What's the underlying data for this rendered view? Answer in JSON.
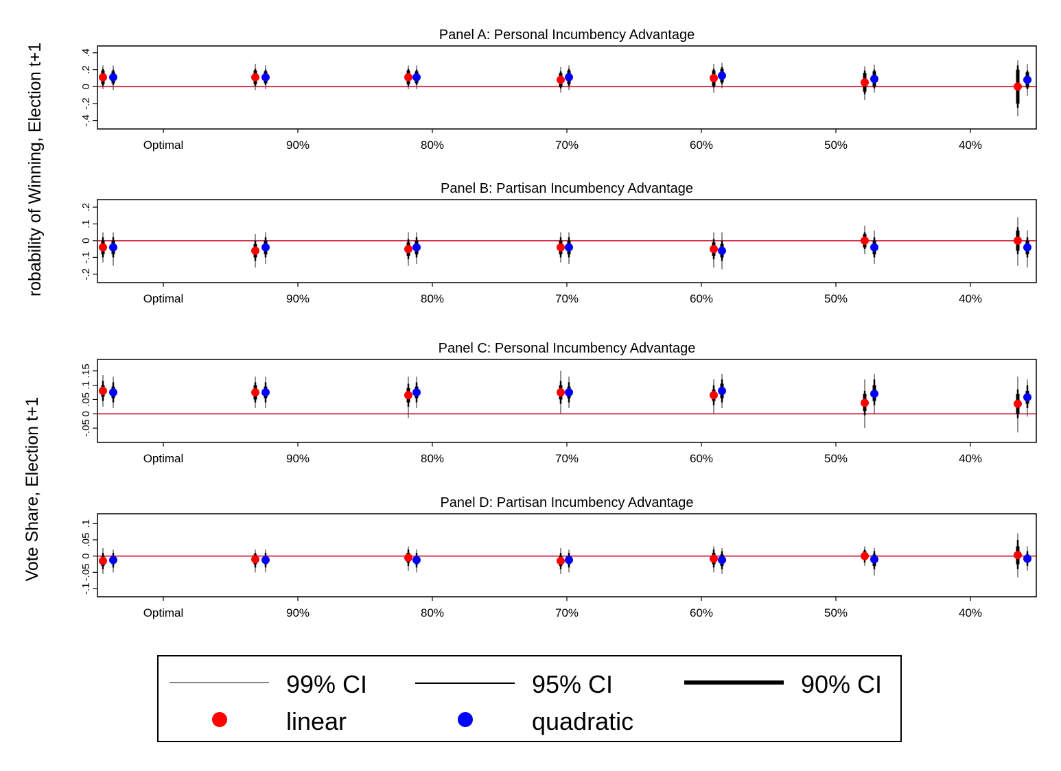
{
  "figure": {
    "ylabel_top": "robability of Winning, Election t+1",
    "ylabel_bottom": "Vote Share, Election t+1"
  },
  "legend": {
    "ci99": "99% CI",
    "ci95": "95% CI",
    "ci90": "90% CI",
    "linear": "linear",
    "quadratic": "quadratic",
    "colors": {
      "linear": "#ff0000",
      "quadratic": "#0000ff",
      "ci": "#000000",
      "zero_line": "#c8102e"
    }
  },
  "chart_data": [
    {
      "type": "scatter",
      "title": "Panel A: Personal Incumbency Advantage",
      "categories": [
        "Optimal",
        "90%",
        "80%",
        "70%",
        "60%",
        "50%",
        "40%"
      ],
      "yticks": [
        "-.4",
        "-.2",
        "0",
        ".2",
        ".4"
      ],
      "yticks_values": [
        -0.4,
        -0.2,
        0,
        0.2,
        0.4
      ],
      "ylim": [
        -0.5,
        0.48
      ],
      "reference_line": 0,
      "series": [
        {
          "name": "linear",
          "values": [
            0.11,
            0.11,
            0.11,
            0.08,
            0.1,
            0.05,
            0.0
          ],
          "ci90": [
            [
              0.03,
              0.19
            ],
            [
              0.03,
              0.19
            ],
            [
              0.03,
              0.19
            ],
            [
              0.0,
              0.16
            ],
            [
              0.01,
              0.19
            ],
            [
              -0.06,
              0.16
            ],
            [
              -0.2,
              0.2
            ]
          ],
          "ci95": [
            [
              0.01,
              0.21
            ],
            [
              0.01,
              0.21
            ],
            [
              0.01,
              0.21
            ],
            [
              -0.02,
              0.18
            ],
            [
              -0.01,
              0.21
            ],
            [
              -0.09,
              0.19
            ],
            [
              -0.25,
              0.25
            ]
          ],
          "ci99": [
            [
              -0.03,
              0.25
            ],
            [
              -0.04,
              0.27
            ],
            [
              -0.03,
              0.25
            ],
            [
              -0.07,
              0.23
            ],
            [
              -0.07,
              0.27
            ],
            [
              -0.16,
              0.24
            ],
            [
              -0.35,
              0.31
            ]
          ]
        },
        {
          "name": "quadratic",
          "values": [
            0.11,
            0.11,
            0.11,
            0.11,
            0.13,
            0.09,
            0.08
          ],
          "ci90": [
            [
              0.04,
              0.18
            ],
            [
              0.04,
              0.18
            ],
            [
              0.04,
              0.18
            ],
            [
              0.03,
              0.19
            ],
            [
              0.05,
              0.21
            ],
            [
              0.0,
              0.18
            ],
            [
              -0.01,
              0.17
            ]
          ],
          "ci95": [
            [
              0.02,
              0.2
            ],
            [
              0.02,
              0.2
            ],
            [
              0.02,
              0.2
            ],
            [
              0.01,
              0.21
            ],
            [
              0.03,
              0.23
            ],
            [
              -0.02,
              0.2
            ],
            [
              -0.03,
              0.19
            ]
          ],
          "ci99": [
            [
              -0.04,
              0.25
            ],
            [
              -0.03,
              0.25
            ],
            [
              -0.03,
              0.25
            ],
            [
              -0.04,
              0.25
            ],
            [
              -0.02,
              0.28
            ],
            [
              -0.07,
              0.26
            ],
            [
              -0.11,
              0.27
            ]
          ]
        }
      ]
    },
    {
      "type": "scatter",
      "title": "Panel B: Partisan Incumbency Advantage",
      "categories": [
        "Optimal",
        "90%",
        "80%",
        "70%",
        "60%",
        "50%",
        "40%"
      ],
      "yticks": [
        "-.2",
        "-.1",
        "0",
        ".1",
        ".2"
      ],
      "yticks_values": [
        -0.2,
        -0.1,
        0,
        0.1,
        0.2
      ],
      "ylim": [
        -0.25,
        0.245
      ],
      "reference_line": 0,
      "series": [
        {
          "name": "linear",
          "values": [
            -0.04,
            -0.06,
            -0.05,
            -0.04,
            -0.05,
            0.0,
            0.0
          ],
          "ci90": [
            [
              -0.08,
              0.0
            ],
            [
              -0.1,
              -0.02
            ],
            [
              -0.09,
              -0.01
            ],
            [
              -0.08,
              0.0
            ],
            [
              -0.09,
              -0.01
            ],
            [
              -0.04,
              0.04
            ],
            [
              -0.06,
              0.06
            ]
          ],
          "ci95": [
            [
              -0.1,
              0.02
            ],
            [
              -0.12,
              0.0
            ],
            [
              -0.11,
              0.01
            ],
            [
              -0.1,
              0.02
            ],
            [
              -0.11,
              0.01
            ],
            [
              -0.05,
              0.05
            ],
            [
              -0.08,
              0.08
            ]
          ],
          "ci99": [
            [
              -0.13,
              0.05
            ],
            [
              -0.16,
              0.04
            ],
            [
              -0.15,
              0.05
            ],
            [
              -0.13,
              0.05
            ],
            [
              -0.16,
              0.05
            ],
            [
              -0.08,
              0.09
            ],
            [
              -0.15,
              0.14
            ]
          ]
        },
        {
          "name": "quadratic",
          "values": [
            -0.04,
            -0.04,
            -0.04,
            -0.04,
            -0.06,
            -0.04,
            -0.04
          ],
          "ci90": [
            [
              -0.08,
              0.0
            ],
            [
              -0.08,
              0.0
            ],
            [
              -0.08,
              0.0
            ],
            [
              -0.08,
              0.0
            ],
            [
              -0.1,
              -0.02
            ],
            [
              -0.08,
              0.0
            ],
            [
              -0.08,
              0.0
            ]
          ],
          "ci95": [
            [
              -0.1,
              0.02
            ],
            [
              -0.1,
              0.02
            ],
            [
              -0.1,
              0.02
            ],
            [
              -0.1,
              0.02
            ],
            [
              -0.12,
              0.0
            ],
            [
              -0.1,
              0.02
            ],
            [
              -0.1,
              0.02
            ]
          ],
          "ci99": [
            [
              -0.15,
              0.05
            ],
            [
              -0.14,
              0.05
            ],
            [
              -0.14,
              0.05
            ],
            [
              -0.14,
              0.05
            ],
            [
              -0.17,
              0.05
            ],
            [
              -0.14,
              0.06
            ],
            [
              -0.16,
              0.06
            ]
          ]
        }
      ]
    },
    {
      "type": "scatter",
      "title": "Panel C: Personal Incumbency Advantage",
      "categories": [
        "Optimal",
        "90%",
        "80%",
        "70%",
        "60%",
        "50%",
        "40%"
      ],
      "yticks": [
        "-.05",
        "0",
        ".05",
        ".1",
        ".15"
      ],
      "yticks_values": [
        -0.05,
        0,
        0.05,
        0.1,
        0.15
      ],
      "ylim": [
        -0.1,
        0.19
      ],
      "reference_line": 0,
      "series": [
        {
          "name": "linear",
          "values": [
            0.08,
            0.075,
            0.065,
            0.075,
            0.065,
            0.038,
            0.035
          ],
          "ci90": [
            [
              0.06,
              0.1
            ],
            [
              0.05,
              0.1
            ],
            [
              0.04,
              0.09
            ],
            [
              0.05,
              0.1
            ],
            [
              0.045,
              0.085
            ],
            [
              0.01,
              0.07
            ],
            [
              0.0,
              0.07
            ]
          ],
          "ci95": [
            [
              0.045,
              0.115
            ],
            [
              0.04,
              0.11
            ],
            [
              0.025,
              0.105
            ],
            [
              0.035,
              0.115
            ],
            [
              0.03,
              0.1
            ],
            [
              -0.005,
              0.08
            ],
            [
              -0.015,
              0.085
            ]
          ],
          "ci99": [
            [
              0.025,
              0.135
            ],
            [
              0.02,
              0.13
            ],
            [
              -0.015,
              0.13
            ],
            [
              0.0,
              0.15
            ],
            [
              0.0,
              0.12
            ],
            [
              -0.05,
              0.12
            ],
            [
              -0.065,
              0.13
            ]
          ]
        },
        {
          "name": "quadratic",
          "values": [
            0.075,
            0.075,
            0.075,
            0.075,
            0.08,
            0.07,
            0.058
          ],
          "ci90": [
            [
              0.055,
              0.095
            ],
            [
              0.055,
              0.095
            ],
            [
              0.055,
              0.095
            ],
            [
              0.055,
              0.095
            ],
            [
              0.055,
              0.105
            ],
            [
              0.045,
              0.1
            ],
            [
              0.035,
              0.08
            ]
          ],
          "ci95": [
            [
              0.04,
              0.11
            ],
            [
              0.04,
              0.11
            ],
            [
              0.04,
              0.11
            ],
            [
              0.04,
              0.11
            ],
            [
              0.04,
              0.12
            ],
            [
              0.03,
              0.12
            ],
            [
              0.02,
              0.1
            ]
          ],
          "ci99": [
            [
              0.02,
              0.13
            ],
            [
              0.02,
              0.13
            ],
            [
              0.02,
              0.13
            ],
            [
              0.02,
              0.13
            ],
            [
              0.02,
              0.14
            ],
            [
              0.0,
              0.14
            ],
            [
              -0.01,
              0.12
            ]
          ]
        }
      ]
    },
    {
      "type": "scatter",
      "title": "Panel D: Partisan Incumbency Advantage",
      "categories": [
        "Optimal",
        "90%",
        "80%",
        "70%",
        "60%",
        "50%",
        "40%"
      ],
      "yticks": [
        "-.1",
        "-.05",
        "0",
        ".05",
        ".1"
      ],
      "yticks_values": [
        -0.1,
        -0.05,
        0,
        0.05,
        0.1
      ],
      "ylim": [
        -0.125,
        0.13
      ],
      "reference_line": 0,
      "series": [
        {
          "name": "linear",
          "values": [
            -0.015,
            -0.01,
            -0.005,
            -0.015,
            -0.008,
            0.0,
            0.003
          ],
          "ci90": [
            [
              -0.03,
              0.0
            ],
            [
              -0.025,
              0.005
            ],
            [
              -0.02,
              0.01
            ],
            [
              -0.03,
              0.0
            ],
            [
              -0.025,
              0.01
            ],
            [
              -0.01,
              0.015
            ],
            [
              -0.025,
              0.03
            ]
          ],
          "ci95": [
            [
              -0.04,
              0.01
            ],
            [
              -0.035,
              0.01
            ],
            [
              -0.03,
              0.02
            ],
            [
              -0.04,
              0.01
            ],
            [
              -0.035,
              0.02
            ],
            [
              -0.02,
              0.02
            ],
            [
              -0.04,
              0.05
            ]
          ],
          "ci99": [
            [
              -0.055,
              0.025
            ],
            [
              -0.05,
              0.02
            ],
            [
              -0.045,
              0.03
            ],
            [
              -0.055,
              0.025
            ],
            [
              -0.05,
              0.03
            ],
            [
              -0.03,
              0.03
            ],
            [
              -0.065,
              0.07
            ]
          ]
        },
        {
          "name": "quadratic",
          "values": [
            -0.012,
            -0.012,
            -0.012,
            -0.012,
            -0.012,
            -0.01,
            -0.008
          ],
          "ci90": [
            [
              -0.025,
              0.0
            ],
            [
              -0.025,
              0.0
            ],
            [
              -0.025,
              0.0
            ],
            [
              -0.025,
              0.0
            ],
            [
              -0.03,
              0.005
            ],
            [
              -0.03,
              0.005
            ],
            [
              -0.02,
              0.005
            ]
          ],
          "ci95": [
            [
              -0.035,
              0.01
            ],
            [
              -0.035,
              0.01
            ],
            [
              -0.035,
              0.01
            ],
            [
              -0.035,
              0.01
            ],
            [
              -0.04,
              0.015
            ],
            [
              -0.04,
              0.015
            ],
            [
              -0.03,
              0.015
            ]
          ],
          "ci99": [
            [
              -0.05,
              0.02
            ],
            [
              -0.05,
              0.02
            ],
            [
              -0.05,
              0.02
            ],
            [
              -0.05,
              0.02
            ],
            [
              -0.055,
              0.025
            ],
            [
              -0.06,
              0.025
            ],
            [
              -0.045,
              0.03
            ]
          ]
        }
      ]
    }
  ]
}
